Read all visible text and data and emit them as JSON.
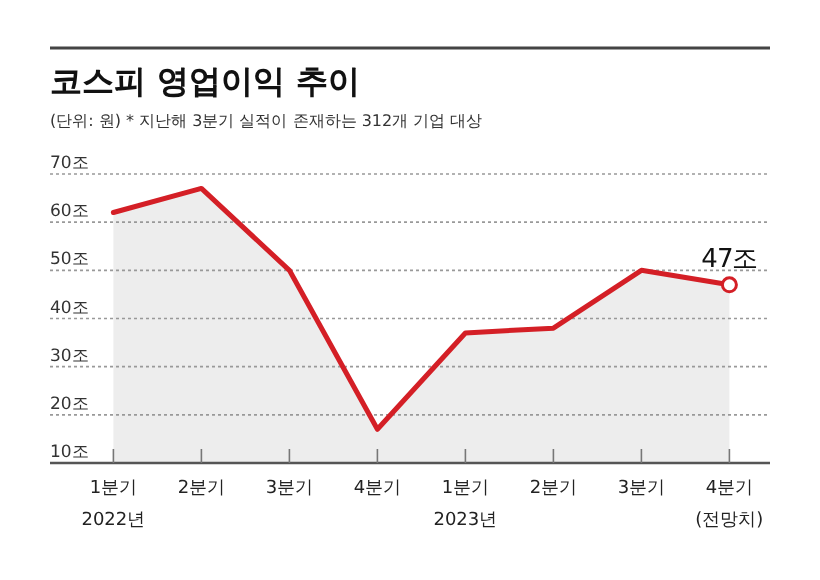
{
  "chart_data": {
    "type": "area",
    "title": "코스피 영업이익 추이",
    "subtitle": "(단위: 원)  * 지난해 3분기 실적이 존재하는 312개 기업 대상",
    "categories": [
      "1분기\n2022년",
      "2분기",
      "3분기",
      "4분기",
      "1분기\n2023년",
      "2분기",
      "3분기",
      "4분기\n(전망치)"
    ],
    "series": [
      {
        "color": "#d41f26",
        "values": [
          62,
          67,
          50,
          17,
          37,
          38,
          50,
          47
        ],
        "value_labels": [
          null,
          null,
          null,
          null,
          null,
          null,
          null,
          "47조"
        ]
      }
    ],
    "ylim": [
      10,
      70
    ],
    "yticks": [
      {
        "value": 10,
        "label": "10조"
      },
      {
        "value": 20,
        "label": "20조"
      },
      {
        "value": 30,
        "label": "30조"
      },
      {
        "value": 40,
        "label": "40조"
      },
      {
        "value": 50,
        "label": "50조"
      },
      {
        "value": 60,
        "label": "60조"
      },
      {
        "value": 70,
        "label": "70조"
      }
    ],
    "grid": "y"
  }
}
